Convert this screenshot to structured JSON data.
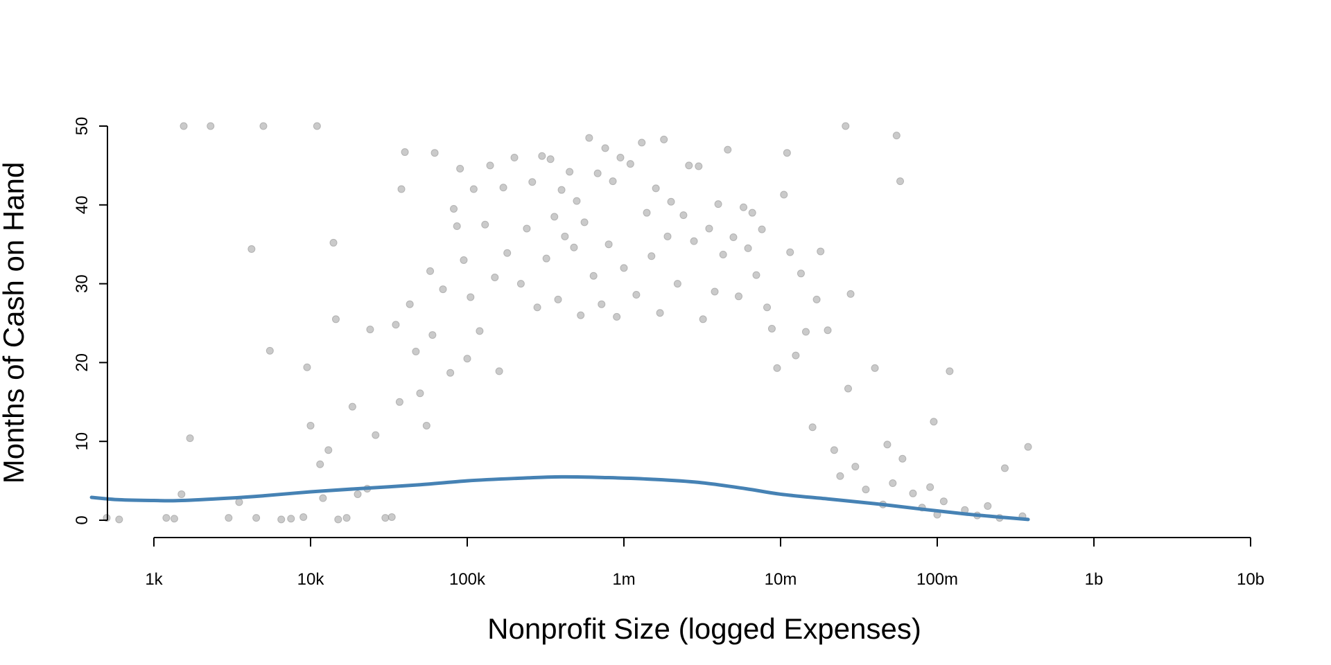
{
  "chart_data": {
    "type": "scatter",
    "title": "",
    "xlabel": "Nonprofit Size (logged Expenses)",
    "ylabel": "Months of Cash on Hand",
    "x_scale": "log10",
    "xlim": [
      400,
      10000000000
    ],
    "ylim": [
      0,
      50
    ],
    "x_ticks": [
      {
        "value": 1000,
        "label": "1k"
      },
      {
        "value": 10000,
        "label": "10k"
      },
      {
        "value": 100000,
        "label": "100k"
      },
      {
        "value": 1000000,
        "label": "1m"
      },
      {
        "value": 10000000,
        "label": "10m"
      },
      {
        "value": 100000000,
        "label": "100m"
      },
      {
        "value": 1000000000,
        "label": "1b"
      },
      {
        "value": 10000000000,
        "label": "10b"
      }
    ],
    "y_ticks": [
      {
        "value": 0,
        "label": "0"
      },
      {
        "value": 10,
        "label": "10"
      },
      {
        "value": 20,
        "label": "20"
      },
      {
        "value": 30,
        "label": "30"
      },
      {
        "value": 40,
        "label": "40"
      },
      {
        "value": 50,
        "label": "50"
      }
    ],
    "grid": false,
    "series": [
      {
        "type": "scatter",
        "color": "#9e9e9e",
        "points": [
          [
            500,
            0.3
          ],
          [
            600,
            0.1
          ],
          [
            1200,
            0.3
          ],
          [
            1350,
            0.2
          ],
          [
            1500,
            3.3
          ],
          [
            1700,
            10.4
          ],
          [
            1550,
            50
          ],
          [
            2300,
            50
          ],
          [
            3000,
            0.3
          ],
          [
            3500,
            2.3
          ],
          [
            4200,
            34.4
          ],
          [
            4500,
            0.3
          ],
          [
            5000,
            50
          ],
          [
            5500,
            21.5
          ],
          [
            6500,
            0.1
          ],
          [
            7500,
            0.2
          ],
          [
            9000,
            0.4
          ],
          [
            9500,
            19.4
          ],
          [
            10000,
            12.0
          ],
          [
            11000,
            50
          ],
          [
            11500,
            7.1
          ],
          [
            12000,
            2.8
          ],
          [
            13000,
            8.9
          ],
          [
            14000,
            35.2
          ],
          [
            14500,
            25.5
          ],
          [
            15000,
            0.1
          ],
          [
            17000,
            0.3
          ],
          [
            18500,
            14.4
          ],
          [
            20000,
            3.3
          ],
          [
            23000,
            4.0
          ],
          [
            24000,
            24.2
          ],
          [
            26000,
            10.8
          ],
          [
            30000,
            0.3
          ],
          [
            33000,
            0.4
          ],
          [
            35000,
            24.8
          ],
          [
            37000,
            15.0
          ],
          [
            38000,
            42.0
          ],
          [
            40000,
            46.7
          ],
          [
            43000,
            27.4
          ],
          [
            47000,
            21.4
          ],
          [
            50000,
            16.1
          ],
          [
            55000,
            12.0
          ],
          [
            58000,
            31.6
          ],
          [
            60000,
            23.5
          ],
          [
            62000,
            46.6
          ],
          [
            70000,
            29.3
          ],
          [
            78000,
            18.7
          ],
          [
            82000,
            39.5
          ],
          [
            86000,
            37.3
          ],
          [
            90000,
            44.6
          ],
          [
            95000,
            33.0
          ],
          [
            100000,
            20.5
          ],
          [
            105000,
            28.3
          ],
          [
            110000,
            42.0
          ],
          [
            120000,
            24.0
          ],
          [
            130000,
            37.5
          ],
          [
            140000,
            45.0
          ],
          [
            150000,
            30.8
          ],
          [
            160000,
            18.9
          ],
          [
            170000,
            42.2
          ],
          [
            180000,
            33.9
          ],
          [
            200000,
            46.0
          ],
          [
            220000,
            30.0
          ],
          [
            240000,
            37.0
          ],
          [
            260000,
            42.9
          ],
          [
            280000,
            27.0
          ],
          [
            300000,
            46.2
          ],
          [
            320000,
            33.2
          ],
          [
            340000,
            45.8
          ],
          [
            360000,
            38.5
          ],
          [
            380000,
            28.0
          ],
          [
            400000,
            41.9
          ],
          [
            420000,
            36.0
          ],
          [
            450000,
            44.2
          ],
          [
            480000,
            34.6
          ],
          [
            500000,
            40.5
          ],
          [
            530000,
            26.0
          ],
          [
            560000,
            37.8
          ],
          [
            600000,
            48.5
          ],
          [
            640000,
            31.0
          ],
          [
            680000,
            44.0
          ],
          [
            720000,
            27.4
          ],
          [
            760000,
            47.2
          ],
          [
            800000,
            35.0
          ],
          [
            850000,
            43.0
          ],
          [
            900000,
            25.8
          ],
          [
            950000,
            46.0
          ],
          [
            1000000,
            32.0
          ],
          [
            1100000,
            45.2
          ],
          [
            1200000,
            28.6
          ],
          [
            1300000,
            47.9
          ],
          [
            1400000,
            39.0
          ],
          [
            1500000,
            33.5
          ],
          [
            1600000,
            42.1
          ],
          [
            1700000,
            26.3
          ],
          [
            1800000,
            48.3
          ],
          [
            1900000,
            36.0
          ],
          [
            2000000,
            40.4
          ],
          [
            2200000,
            30.0
          ],
          [
            2400000,
            38.7
          ],
          [
            2600000,
            45.0
          ],
          [
            2800000,
            35.4
          ],
          [
            3000000,
            44.9
          ],
          [
            3200000,
            25.5
          ],
          [
            3500000,
            37.0
          ],
          [
            3800000,
            29.0
          ],
          [
            4000000,
            40.1
          ],
          [
            4300000,
            33.7
          ],
          [
            4600000,
            47.0
          ],
          [
            5000000,
            35.9
          ],
          [
            5400000,
            28.4
          ],
          [
            5800000,
            39.7
          ],
          [
            6200000,
            34.5
          ],
          [
            6600000,
            39.0
          ],
          [
            7000000,
            31.1
          ],
          [
            7600000,
            36.9
          ],
          [
            8200000,
            27.0
          ],
          [
            8800000,
            24.3
          ],
          [
            9500000,
            19.3
          ],
          [
            10500000,
            41.3
          ],
          [
            11000000,
            46.6
          ],
          [
            11500000,
            34.0
          ],
          [
            12500000,
            20.9
          ],
          [
            13500000,
            31.3
          ],
          [
            14500000,
            23.9
          ],
          [
            16000000,
            11.8
          ],
          [
            17000000,
            28.0
          ],
          [
            18000000,
            34.1
          ],
          [
            20000000,
            24.1
          ],
          [
            22000000,
            8.9
          ],
          [
            24000000,
            5.6
          ],
          [
            26000000,
            50
          ],
          [
            27000000,
            16.7
          ],
          [
            28000000,
            28.7
          ],
          [
            30000000,
            6.8
          ],
          [
            35000000,
            3.9
          ],
          [
            40000000,
            19.3
          ],
          [
            45000000,
            2.0
          ],
          [
            48000000,
            9.6
          ],
          [
            52000000,
            4.7
          ],
          [
            55000000,
            48.8
          ],
          [
            58000000,
            43.0
          ],
          [
            60000000,
            7.8
          ],
          [
            70000000,
            3.4
          ],
          [
            80000000,
            1.6
          ],
          [
            90000000,
            4.2
          ],
          [
            95000000,
            12.5
          ],
          [
            100000000,
            0.7
          ],
          [
            110000000,
            2.4
          ],
          [
            120000000,
            18.9
          ],
          [
            150000000,
            1.3
          ],
          [
            180000000,
            0.6
          ],
          [
            210000000,
            1.8
          ],
          [
            250000000,
            0.3
          ],
          [
            270000000,
            6.6
          ],
          [
            380000000,
            9.3
          ],
          [
            350000000,
            0.5
          ]
        ]
      },
      {
        "type": "line",
        "color": "#4682b4",
        "name": "",
        "points": [
          [
            400,
            2.9
          ],
          [
            600,
            2.6
          ],
          [
            1000,
            2.5
          ],
          [
            1500,
            2.5
          ],
          [
            3000,
            2.8
          ],
          [
            5000,
            3.1
          ],
          [
            10000,
            3.6
          ],
          [
            20000,
            4.0
          ],
          [
            50000,
            4.5
          ],
          [
            100000,
            5.0
          ],
          [
            200000,
            5.3
          ],
          [
            400000,
            5.5
          ],
          [
            800000,
            5.4
          ],
          [
            1500000,
            5.2
          ],
          [
            3000000,
            4.8
          ],
          [
            6000000,
            4.0
          ],
          [
            10000000,
            3.3
          ],
          [
            20000000,
            2.7
          ],
          [
            40000000,
            2.1
          ],
          [
            80000000,
            1.4
          ],
          [
            150000000,
            0.8
          ],
          [
            250000000,
            0.4
          ],
          [
            380000000,
            0.1
          ]
        ]
      }
    ]
  }
}
